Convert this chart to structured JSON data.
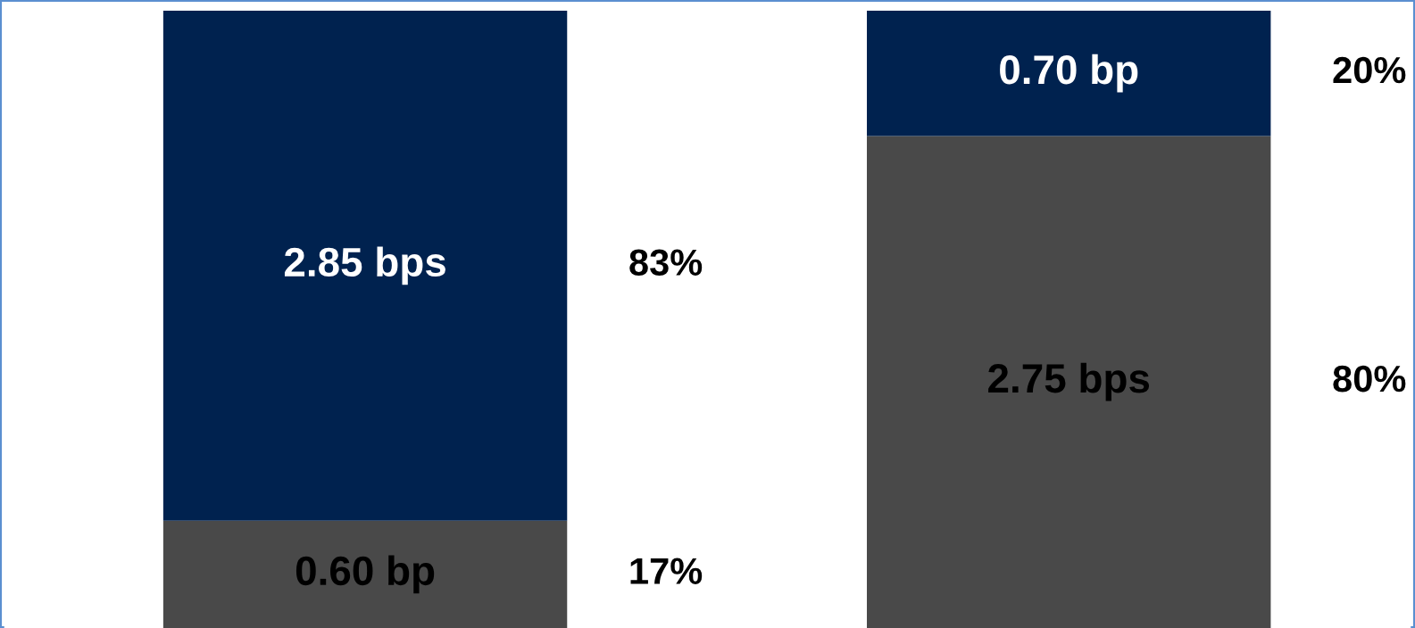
{
  "chart_data": {
    "type": "bar",
    "stacked": true,
    "categories": [
      null,
      null
    ],
    "series": [
      {
        "color": "#494949",
        "values": [
          0.6,
          2.75
        ],
        "value_labels": [
          "0.60 bp",
          "2.75 bps"
        ]
      },
      {
        "color": "#00224f",
        "values": [
          2.85,
          0.7
        ],
        "value_labels": [
          "2.85 bps",
          "0.70 bp"
        ]
      }
    ],
    "annotations": [
      "83%",
      "17%",
      "20%",
      "80%"
    ]
  }
}
